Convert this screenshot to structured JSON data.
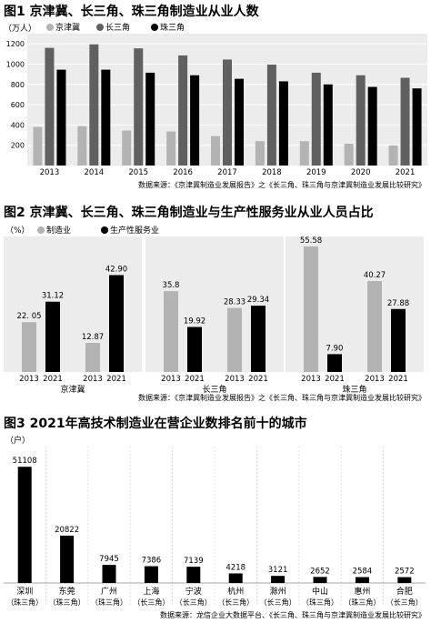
{
  "chart_data": [
    {
      "type": "bar",
      "title": "图1  京津冀、长三角、珠三角制造业从业人数",
      "unit": "（万人）",
      "categories": [
        "2013",
        "2014",
        "2015",
        "2016",
        "2017",
        "2018",
        "2019",
        "2020",
        "2021"
      ],
      "series": [
        {
          "name": "京津冀",
          "color": "#b3b3b3",
          "values": [
            380,
            388,
            345,
            335,
            290,
            240,
            240,
            215,
            198
          ]
        },
        {
          "name": "长三角",
          "color": "#606060",
          "values": [
            1160,
            1195,
            1155,
            1085,
            1045,
            995,
            915,
            890,
            865
          ]
        },
        {
          "name": "珠三角",
          "color": "#000000",
          "values": [
            945,
            945,
            915,
            890,
            855,
            830,
            800,
            775,
            760
          ]
        }
      ],
      "ylim": [
        0,
        1300
      ],
      "yticks": [
        200,
        400,
        600,
        800,
        1000,
        1200
      ],
      "source": "数据来源：《京津冀制造业发展报告》之《长三角、珠三角与京津冀制造业发展比较研究》"
    },
    {
      "type": "bar",
      "title": "图2  京津冀、长三角、珠三角制造业与生产性服务业从业人员占比",
      "unit": "（%）",
      "legend": [
        "制造业",
        "生产性服务业"
      ],
      "colors": [
        "#b3b3b3",
        "#000000"
      ],
      "groups": [
        {
          "name": "京津冀",
          "bars": [
            {
              "year": "2013",
              "series": 0,
              "value": 22.05,
              "label": "22. 05"
            },
            {
              "year": "2021",
              "series": 1,
              "value": 31.12,
              "label": "31.12"
            },
            {
              "year": "2013",
              "series": 0,
              "value": 12.87,
              "label": "12.87"
            },
            {
              "year": "2021",
              "series": 1,
              "value": 42.9,
              "label": "42.90"
            }
          ]
        },
        {
          "name": "长三角",
          "bars": [
            {
              "year": "2013",
              "series": 0,
              "value": 35.8,
              "label": "35.8"
            },
            {
              "year": "2021",
              "series": 1,
              "value": 19.92,
              "label": "19.92"
            },
            {
              "year": "2013",
              "series": 0,
              "value": 28.33,
              "label": "28.33"
            },
            {
              "year": "2021",
              "series": 1,
              "value": 29.34,
              "label": "29.34"
            }
          ]
        },
        {
          "name": "珠三角",
          "bars": [
            {
              "year": "2013",
              "series": 0,
              "value": 55.58,
              "label": "55.58"
            },
            {
              "year": "2021",
              "series": 1,
              "value": 7.9,
              "label": "7.90"
            },
            {
              "year": "2013",
              "series": 0,
              "value": 40.27,
              "label": "40.27"
            },
            {
              "year": "2021",
              "series": 1,
              "value": 27.88,
              "label": "27.88"
            }
          ]
        }
      ],
      "ylim": [
        0,
        60
      ],
      "source": "数据来源：《京津冀制造业发展报告》之《长三角、珠三角与京津冀制造业发展比较研究》"
    },
    {
      "type": "bar",
      "title": "图3  2021年高技术制造业在营企业数排名前十的城市",
      "unit": "（户）",
      "color": "#000000",
      "categories": [
        {
          "city": "深圳",
          "region": "（珠三角）"
        },
        {
          "city": "东莞",
          "region": "（珠三角）"
        },
        {
          "city": "广州",
          "region": "（珠三角）"
        },
        {
          "city": "上海",
          "region": "（长三角）"
        },
        {
          "city": "宁波",
          "region": "（长三角）"
        },
        {
          "city": "杭州",
          "region": "（长三角）"
        },
        {
          "city": "滁州",
          "region": "（长三角）"
        },
        {
          "city": "中山",
          "region": "（珠三角）"
        },
        {
          "city": "惠州",
          "region": "（珠三角）"
        },
        {
          "city": "合肥",
          "region": "（长三角）"
        }
      ],
      "values": [
        51108,
        20822,
        7945,
        7386,
        7139,
        4218,
        3121,
        2652,
        2584,
        2572
      ],
      "ylim": [
        0,
        60000
      ],
      "source": "数据来源：龙信企业大数据平台、《长三角、珠三角与京津冀制造业发展比较研究》"
    }
  ]
}
